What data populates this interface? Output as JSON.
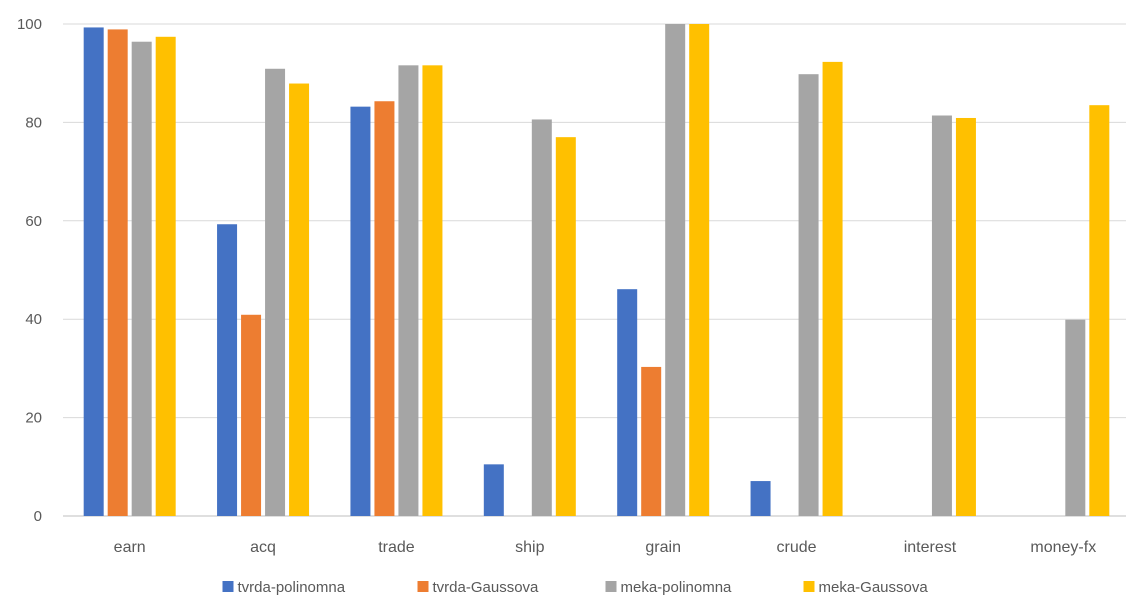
{
  "chart_data": {
    "type": "bar",
    "title": "",
    "xlabel": "",
    "ylabel": "",
    "ylim": [
      0,
      100
    ],
    "yticks": [
      0,
      20,
      40,
      60,
      80,
      100
    ],
    "grid": "horizontal",
    "legend": "bottom",
    "categories": [
      "earn",
      "acq",
      "trade",
      "ship",
      "grain",
      "crude",
      "interest",
      "money-fx"
    ],
    "series": [
      {
        "name": "tvrda-polinomna",
        "color": "#4472C4",
        "values": [
          99.3,
          59.3,
          83.2,
          10.5,
          46.1,
          7.1,
          0,
          0
        ]
      },
      {
        "name": "tvrda-Gaussova",
        "color": "#ED7D31",
        "values": [
          98.9,
          40.9,
          84.3,
          0,
          30.3,
          0,
          0,
          0
        ]
      },
      {
        "name": "meka-polinomna",
        "color": "#A5A5A5",
        "values": [
          96.4,
          90.9,
          91.6,
          80.6,
          100,
          89.8,
          81.4,
          39.9
        ]
      },
      {
        "name": "meka-Gaussova",
        "color": "#FFC000",
        "values": [
          97.4,
          87.9,
          91.6,
          77.0,
          100,
          92.3,
          80.9,
          83.5
        ]
      }
    ]
  }
}
